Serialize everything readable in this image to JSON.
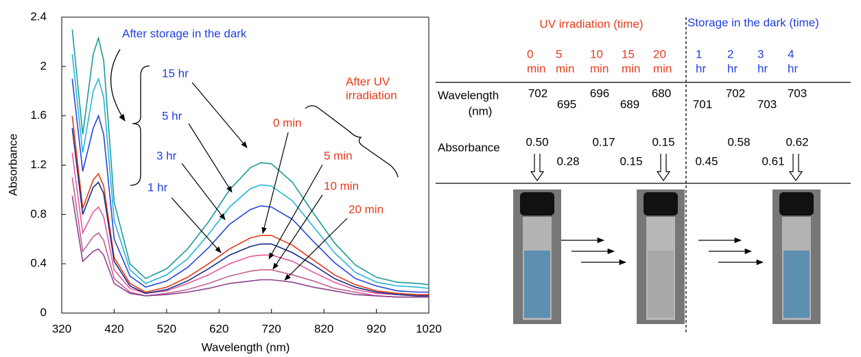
{
  "chart_data": {
    "type": "line",
    "x_label": "Wavelength (nm)",
    "y_label": "Absorbance",
    "x": [
      340,
      360,
      380,
      390,
      400,
      420,
      450,
      480,
      520,
      560,
      600,
      640,
      680,
      700,
      720,
      760,
      800,
      840,
      880,
      920,
      960,
      1000,
      1020
    ],
    "xlim": [
      320,
      1020
    ],
    "xticks": [
      320,
      420,
      520,
      620,
      720,
      820,
      920,
      1020
    ],
    "ylim": [
      0,
      2.4
    ],
    "yticks": [
      0,
      0.4,
      0.8,
      1.2,
      1.6,
      2,
      2.4
    ],
    "annotations": [
      "After storage in the dark",
      "After UV",
      "irradiation"
    ],
    "series": [
      {
        "name": "0 min",
        "color": "#e33a14",
        "values": [
          1.6,
          0.85,
          1.08,
          1.13,
          1.03,
          0.45,
          0.24,
          0.17,
          0.21,
          0.29,
          0.4,
          0.52,
          0.61,
          0.63,
          0.63,
          0.55,
          0.43,
          0.31,
          0.23,
          0.18,
          0.16,
          0.15,
          0.15
        ]
      },
      {
        "name": "5 min",
        "color": "#e8559a",
        "values": [
          1.3,
          0.65,
          0.82,
          0.86,
          0.78,
          0.35,
          0.2,
          0.16,
          0.18,
          0.24,
          0.31,
          0.4,
          0.46,
          0.47,
          0.47,
          0.42,
          0.33,
          0.25,
          0.19,
          0.16,
          0.15,
          0.14,
          0.14
        ]
      },
      {
        "name": "10 min",
        "color": "#c0608f",
        "values": [
          1.1,
          0.5,
          0.62,
          0.65,
          0.59,
          0.28,
          0.17,
          0.14,
          0.16,
          0.19,
          0.24,
          0.3,
          0.34,
          0.35,
          0.35,
          0.31,
          0.26,
          0.2,
          0.17,
          0.14,
          0.13,
          0.13,
          0.13
        ]
      },
      {
        "name": "20 min",
        "color": "#8e3f8e",
        "values": [
          0.95,
          0.42,
          0.5,
          0.52,
          0.47,
          0.24,
          0.16,
          0.14,
          0.15,
          0.17,
          0.2,
          0.24,
          0.26,
          0.27,
          0.27,
          0.25,
          0.21,
          0.18,
          0.15,
          0.14,
          0.13,
          0.13,
          0.13
        ]
      },
      {
        "name": "1 hr",
        "color": "#142a86",
        "values": [
          1.5,
          0.8,
          1.02,
          1.06,
          0.97,
          0.42,
          0.22,
          0.16,
          0.19,
          0.26,
          0.36,
          0.47,
          0.54,
          0.56,
          0.56,
          0.49,
          0.39,
          0.28,
          0.21,
          0.17,
          0.15,
          0.14,
          0.14
        ]
      },
      {
        "name": "3 hr",
        "color": "#2444e0",
        "values": [
          1.9,
          1.15,
          1.5,
          1.6,
          1.45,
          0.6,
          0.3,
          0.21,
          0.26,
          0.37,
          0.53,
          0.72,
          0.84,
          0.87,
          0.86,
          0.76,
          0.58,
          0.41,
          0.28,
          0.22,
          0.18,
          0.17,
          0.17
        ]
      },
      {
        "name": "5 hr",
        "color": "#22b6d8",
        "values": [
          2.1,
          1.3,
          1.8,
          1.9,
          1.75,
          0.75,
          0.35,
          0.24,
          0.31,
          0.44,
          0.64,
          0.86,
          1.01,
          1.04,
          1.03,
          0.91,
          0.7,
          0.49,
          0.33,
          0.25,
          0.22,
          0.21,
          0.2
        ]
      },
      {
        "name": "15 hr",
        "color": "#1a9a98",
        "values": [
          2.3,
          1.45,
          2.1,
          2.23,
          2.05,
          0.9,
          0.4,
          0.28,
          0.36,
          0.52,
          0.74,
          1.0,
          1.18,
          1.22,
          1.21,
          1.06,
          0.81,
          0.57,
          0.39,
          0.29,
          0.25,
          0.24,
          0.23
        ]
      }
    ]
  },
  "table": {
    "groups": [
      "UV irradiation (time)",
      "Storage in the dark (time)"
    ],
    "columns": [
      {
        "num": "0",
        "unit": "min"
      },
      {
        "num": "5",
        "unit": "min"
      },
      {
        "num": "10",
        "unit": "min"
      },
      {
        "num": "15",
        "unit": "min"
      },
      {
        "num": "20",
        "unit": "min"
      },
      {
        "num": "1",
        "unit": "hr"
      },
      {
        "num": "2",
        "unit": "hr"
      },
      {
        "num": "3",
        "unit": "hr"
      },
      {
        "num": "4",
        "unit": "hr"
      }
    ],
    "rows": [
      {
        "label": [
          "Wavelength",
          "(nm)"
        ],
        "values": [
          702,
          695,
          696,
          689,
          680,
          701,
          702,
          703,
          703
        ]
      },
      {
        "label": [
          "Absorbance"
        ],
        "values": [
          "0.50",
          "0.28",
          "0.17",
          "0.15",
          "0.15",
          "0.45",
          "0.58",
          "0.61",
          "0.62"
        ]
      }
    ]
  }
}
